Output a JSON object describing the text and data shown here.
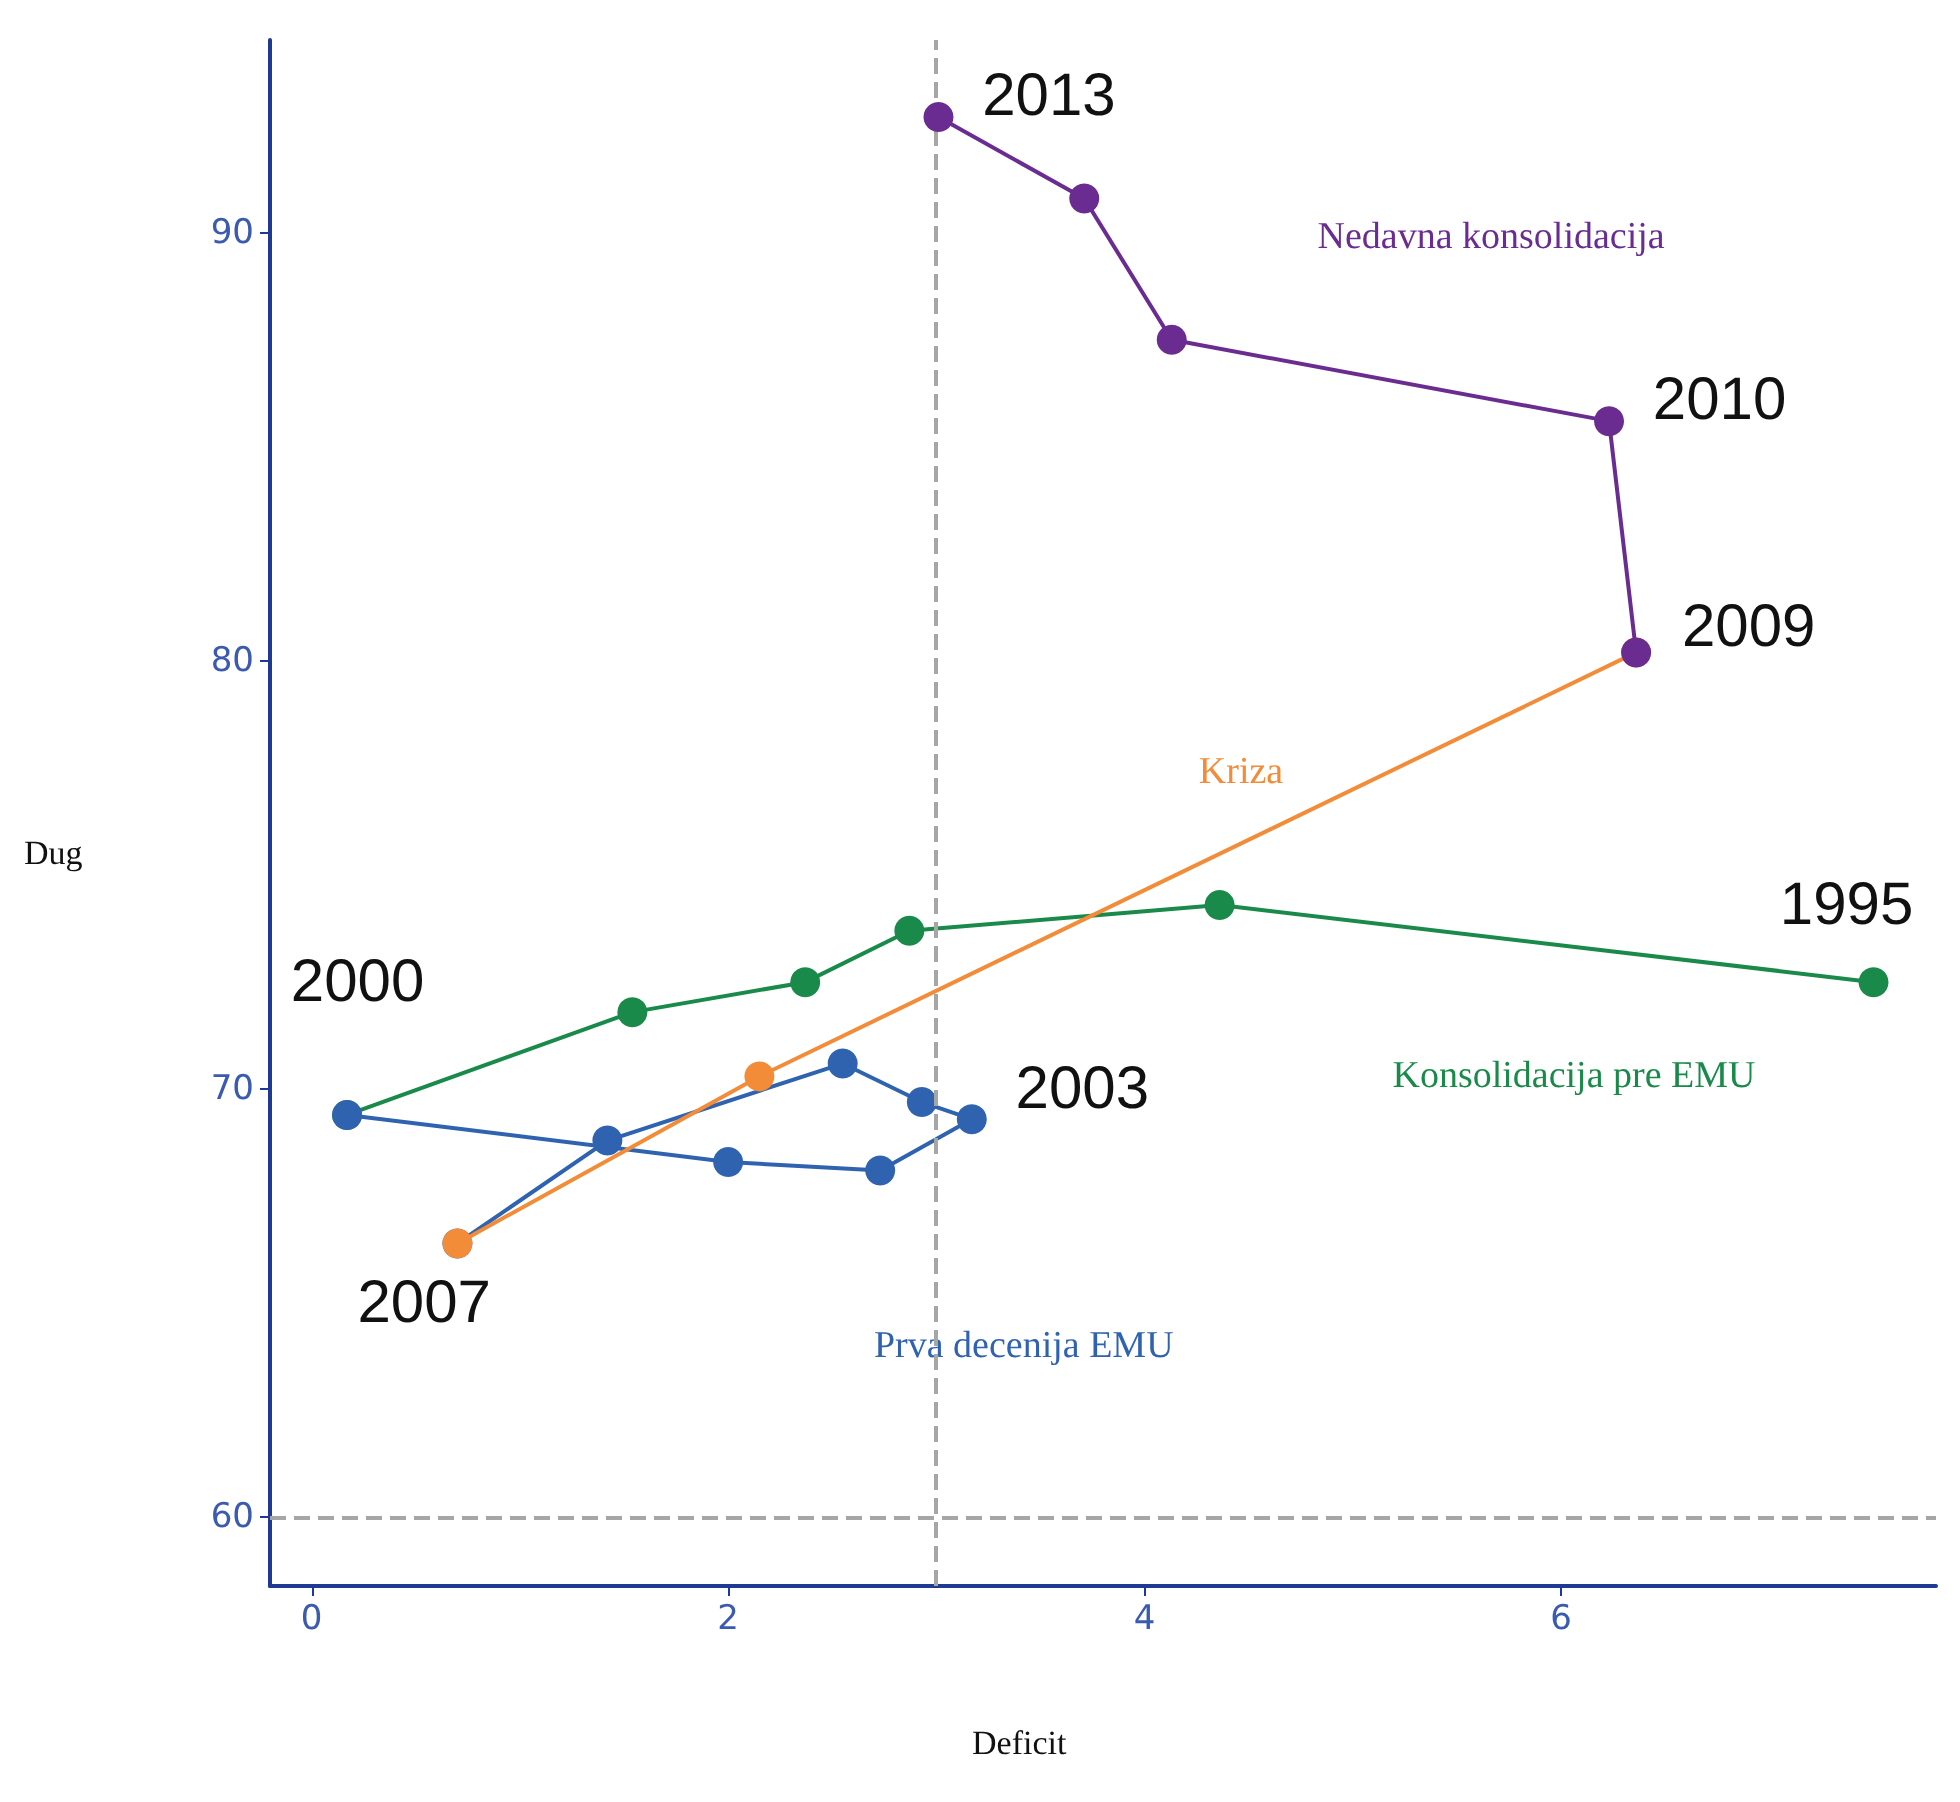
{
  "chart_data": {
    "type": "line",
    "xlabel": "Deficit",
    "ylabel": "Dug",
    "xlim": [
      -0.2,
      7.8
    ],
    "ylim": [
      58.4,
      94.5
    ],
    "xticks": [
      0,
      2,
      4,
      6
    ],
    "yticks": [
      60,
      70,
      80,
      90
    ],
    "grid": false,
    "legend": false,
    "marker": "circle",
    "line_style": "solid",
    "series": [
      {
        "name": "Konsolidacija pre EMU",
        "color": "#1a8a4a",
        "x": [
          7.5,
          4.36,
          2.87,
          2.37,
          1.54,
          0.17
        ],
        "values": [
          72.5,
          74.3,
          73.7,
          72.5,
          71.8,
          69.4
        ]
      },
      {
        "name": "Prva decenija EMU",
        "color": "#2f63b0",
        "x": [
          0.17,
          2.0,
          2.73,
          3.17,
          2.93,
          2.55,
          1.42,
          0.7
        ],
        "values": [
          69.4,
          68.3,
          68.1,
          69.3,
          69.7,
          70.6,
          68.8,
          66.4
        ]
      },
      {
        "name": "Kriza",
        "color": "#f28c38",
        "x": [
          0.7,
          2.15,
          6.36
        ],
        "values": [
          66.4,
          70.3,
          80.2
        ]
      },
      {
        "name": "Nedavna konsolidacija",
        "color": "#6a2c91",
        "x": [
          6.36,
          6.23,
          4.13,
          3.71,
          3.01
        ],
        "values": [
          80.2,
          85.6,
          87.5,
          90.8,
          92.7
        ]
      }
    ],
    "ref_lines": [
      {
        "axis": "x",
        "value": 3,
        "color": "#a6a6a6",
        "line_style": "dashed"
      },
      {
        "axis": "y",
        "value": 60,
        "color": "#a6a6a6",
        "line_style": "dashed"
      }
    ],
    "annotations": [
      "2013",
      "2010",
      "2009",
      "1995",
      "2000",
      "2003",
      "2007"
    ]
  }
}
